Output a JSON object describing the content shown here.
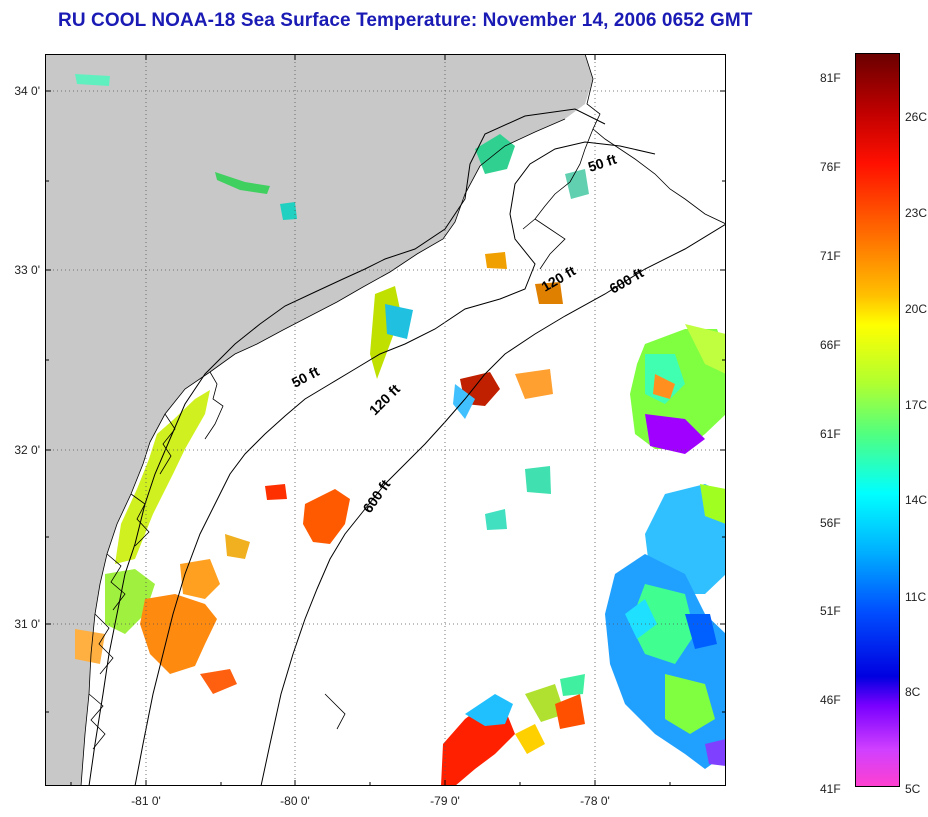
{
  "title": "RU COOL  NOAA-18  Sea Surface Temperature:  November 14, 2006 0652 GMT",
  "map": {
    "lat_labels": [
      "34 0'",
      "33 0'",
      "32 0'",
      "31 0'"
    ],
    "lon_labels": [
      "-81 0'",
      "-80 0'",
      "-79 0'",
      "-78 0'"
    ],
    "isobath_labels": [
      "50 ft",
      "50 ft",
      "120 ft",
      "120 ft",
      "600 ft",
      "600 ft"
    ]
  },
  "colorbar": {
    "fahrenheit": [
      "81F",
      "76F",
      "71F",
      "66F",
      "61F",
      "56F",
      "51F",
      "46F",
      "41F"
    ],
    "celsius": [
      "26C",
      "23C",
      "20C",
      "17C",
      "14C",
      "11C",
      "8C",
      "5C"
    ],
    "colors": [
      "#7a0000",
      "#c00000",
      "#ff1a00",
      "#ff6a00",
      "#ffb000",
      "#ffff00",
      "#a0ff30",
      "#30ff90",
      "#00ffff",
      "#00a0ff",
      "#0040ff",
      "#0000dd",
      "#8000ff",
      "#ff40ff"
    ]
  }
}
